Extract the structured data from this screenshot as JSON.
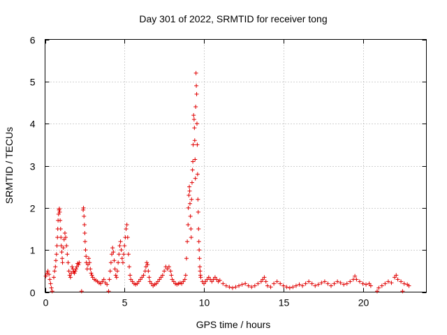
{
  "chart_data": {
    "type": "scatter",
    "title": "Day 301 of 2022, SRMTID for receiver tong",
    "xlabel": "GPS time / hours",
    "ylabel": "SRMTID / TECUs",
    "xlim": [
      0,
      24
    ],
    "ylim": [
      0,
      6
    ],
    "xticks": [
      0,
      5,
      10,
      15,
      20
    ],
    "xtick_labels": [
      "0",
      "5",
      "10",
      "15",
      "20"
    ],
    "yticks": [
      0,
      1,
      2,
      3,
      4,
      5,
      6
    ],
    "ytick_labels": [
      "0",
      "1",
      "2",
      "3",
      "4",
      "5",
      "6"
    ],
    "grid": true,
    "marker": "plus",
    "color": "#e00000",
    "series": [
      {
        "name": "SRMTID",
        "points": [
          [
            0.05,
            0.38
          ],
          [
            0.12,
            0.45
          ],
          [
            0.18,
            0.5
          ],
          [
            0.25,
            0.42
          ],
          [
            0.3,
            0.3
          ],
          [
            0.35,
            0.2
          ],
          [
            0.4,
            0.1
          ],
          [
            0.45,
            0.02
          ],
          [
            0.55,
            0.35
          ],
          [
            0.6,
            0.5
          ],
          [
            0.65,
            0.6
          ],
          [
            0.68,
            0.75
          ],
          [
            0.72,
            0.9
          ],
          [
            0.75,
            1.1
          ],
          [
            0.78,
            1.3
          ],
          [
            0.8,
            1.5
          ],
          [
            0.82,
            1.7
          ],
          [
            0.85,
            1.85
          ],
          [
            0.88,
            1.95
          ],
          [
            0.9,
            1.98
          ],
          [
            0.92,
            1.9
          ],
          [
            0.95,
            1.7
          ],
          [
            0.98,
            1.5
          ],
          [
            1.0,
            1.3
          ],
          [
            1.02,
            1.1
          ],
          [
            1.05,
            0.95
          ],
          [
            1.08,
            0.8
          ],
          [
            1.1,
            0.7
          ],
          [
            1.15,
            1.05
          ],
          [
            1.2,
            1.25
          ],
          [
            1.25,
            1.4
          ],
          [
            1.3,
            1.3
          ],
          [
            1.35,
            1.1
          ],
          [
            1.4,
            0.9
          ],
          [
            1.45,
            0.7
          ],
          [
            1.5,
            0.5
          ],
          [
            1.55,
            0.4
          ],
          [
            1.6,
            0.35
          ],
          [
            1.65,
            0.45
          ],
          [
            1.7,
            0.6
          ],
          [
            1.75,
            0.55
          ],
          [
            1.8,
            0.48
          ],
          [
            1.85,
            0.45
          ],
          [
            1.9,
            0.5
          ],
          [
            1.95,
            0.55
          ],
          [
            2.0,
            0.6
          ],
          [
            2.05,
            0.68
          ],
          [
            2.1,
            0.65
          ],
          [
            2.15,
            0.7
          ],
          [
            2.3,
            0.02
          ],
          [
            2.4,
            1.95
          ],
          [
            2.42,
            2.0
          ],
          [
            2.45,
            1.8
          ],
          [
            2.48,
            1.6
          ],
          [
            2.5,
            1.4
          ],
          [
            2.52,
            1.2
          ],
          [
            2.55,
            1.0
          ],
          [
            2.58,
            0.85
          ],
          [
            2.6,
            0.7
          ],
          [
            2.65,
            0.55
          ],
          [
            2.7,
            0.65
          ],
          [
            2.75,
            0.8
          ],
          [
            2.8,
            0.7
          ],
          [
            2.85,
            0.55
          ],
          [
            2.9,
            0.45
          ],
          [
            2.95,
            0.4
          ],
          [
            3.0,
            0.35
          ],
          [
            3.1,
            0.3
          ],
          [
            3.2,
            0.28
          ],
          [
            3.3,
            0.25
          ],
          [
            3.4,
            0.22
          ],
          [
            3.5,
            0.2
          ],
          [
            3.6,
            0.25
          ],
          [
            3.7,
            0.3
          ],
          [
            3.8,
            0.22
          ],
          [
            3.9,
            0.18
          ],
          [
            4.0,
            0.02
          ],
          [
            4.05,
            0.3
          ],
          [
            4.1,
            0.5
          ],
          [
            4.15,
            0.7
          ],
          [
            4.2,
            0.9
          ],
          [
            4.25,
            1.05
          ],
          [
            4.3,
            0.95
          ],
          [
            4.35,
            0.75
          ],
          [
            4.4,
            0.55
          ],
          [
            4.45,
            0.4
          ],
          [
            4.5,
            0.35
          ],
          [
            4.55,
            0.5
          ],
          [
            4.6,
            0.7
          ],
          [
            4.65,
            0.9
          ],
          [
            4.7,
            1.1
          ],
          [
            4.75,
            1.2
          ],
          [
            4.8,
            1.0
          ],
          [
            4.85,
            0.8
          ],
          [
            4.9,
            0.7
          ],
          [
            4.95,
            0.9
          ],
          [
            5.0,
            1.1
          ],
          [
            5.05,
            1.3
          ],
          [
            5.1,
            1.5
          ],
          [
            5.15,
            1.6
          ],
          [
            5.2,
            1.3
          ],
          [
            5.25,
            0.9
          ],
          [
            5.3,
            0.6
          ],
          [
            5.35,
            0.4
          ],
          [
            5.4,
            0.3
          ],
          [
            5.5,
            0.25
          ],
          [
            5.6,
            0.2
          ],
          [
            5.7,
            0.18
          ],
          [
            5.8,
            0.2
          ],
          [
            5.9,
            0.25
          ],
          [
            6.0,
            0.3
          ],
          [
            6.1,
            0.35
          ],
          [
            6.2,
            0.4
          ],
          [
            6.3,
            0.5
          ],
          [
            6.35,
            0.6
          ],
          [
            6.4,
            0.7
          ],
          [
            6.45,
            0.65
          ],
          [
            6.5,
            0.5
          ],
          [
            6.55,
            0.35
          ],
          [
            6.6,
            0.25
          ],
          [
            6.7,
            0.2
          ],
          [
            6.8,
            0.15
          ],
          [
            6.9,
            0.18
          ],
          [
            7.0,
            0.2
          ],
          [
            7.1,
            0.25
          ],
          [
            7.2,
            0.3
          ],
          [
            7.3,
            0.35
          ],
          [
            7.4,
            0.4
          ],
          [
            7.5,
            0.5
          ],
          [
            7.6,
            0.6
          ],
          [
            7.7,
            0.55
          ],
          [
            7.8,
            0.6
          ],
          [
            7.9,
            0.5
          ],
          [
            7.95,
            0.4
          ],
          [
            8.0,
            0.3
          ],
          [
            8.1,
            0.25
          ],
          [
            8.2,
            0.2
          ],
          [
            8.3,
            0.18
          ],
          [
            8.4,
            0.2
          ],
          [
            8.5,
            0.22
          ],
          [
            8.6,
            0.2
          ],
          [
            8.7,
            0.25
          ],
          [
            8.8,
            0.3
          ],
          [
            8.85,
            0.4
          ],
          [
            8.9,
            0.8
          ],
          [
            8.95,
            1.2
          ],
          [
            9.0,
            1.6
          ],
          [
            9.02,
            2.0
          ],
          [
            9.05,
            2.3
          ],
          [
            9.08,
            2.5
          ],
          [
            9.1,
            2.4
          ],
          [
            9.12,
            2.1
          ],
          [
            9.15,
            1.8
          ],
          [
            9.18,
            1.5
          ],
          [
            9.2,
            1.3
          ],
          [
            9.22,
            2.2
          ],
          [
            9.25,
            2.6
          ],
          [
            9.28,
            2.9
          ],
          [
            9.3,
            3.1
          ],
          [
            9.32,
            3.5
          ],
          [
            9.35,
            4.2
          ],
          [
            9.38,
            4.1
          ],
          [
            9.4,
            3.9
          ],
          [
            9.42,
            3.6
          ],
          [
            9.44,
            3.15
          ],
          [
            9.46,
            2.7
          ],
          [
            9.48,
            4.4
          ],
          [
            9.5,
            5.2
          ],
          [
            9.52,
            4.9
          ],
          [
            9.54,
            4.7
          ],
          [
            9.56,
            4.0
          ],
          [
            9.58,
            3.5
          ],
          [
            9.6,
            2.8
          ],
          [
            9.62,
            2.2
          ],
          [
            9.64,
            1.9
          ],
          [
            9.66,
            1.5
          ],
          [
            9.68,
            1.2
          ],
          [
            9.7,
            1.0
          ],
          [
            9.72,
            0.8
          ],
          [
            9.74,
            0.6
          ],
          [
            9.76,
            0.5
          ],
          [
            9.78,
            0.4
          ],
          [
            9.8,
            0.35
          ],
          [
            9.9,
            0.25
          ],
          [
            10.0,
            0.2
          ],
          [
            10.1,
            0.25
          ],
          [
            10.2,
            0.3
          ],
          [
            10.3,
            0.35
          ],
          [
            10.4,
            0.3
          ],
          [
            10.5,
            0.25
          ],
          [
            10.6,
            0.3
          ],
          [
            10.7,
            0.35
          ],
          [
            10.8,
            0.3
          ],
          [
            10.9,
            0.25
          ],
          [
            11.0,
            0.28
          ],
          [
            11.2,
            0.2
          ],
          [
            11.4,
            0.15
          ],
          [
            11.6,
            0.12
          ],
          [
            11.8,
            0.1
          ],
          [
            12.0,
            0.12
          ],
          [
            12.2,
            0.15
          ],
          [
            12.4,
            0.18
          ],
          [
            12.6,
            0.2
          ],
          [
            12.8,
            0.15
          ],
          [
            13.0,
            0.12
          ],
          [
            13.2,
            0.15
          ],
          [
            13.4,
            0.2
          ],
          [
            13.6,
            0.25
          ],
          [
            13.7,
            0.3
          ],
          [
            13.8,
            0.35
          ],
          [
            13.9,
            0.25
          ],
          [
            14.0,
            0.15
          ],
          [
            14.2,
            0.12
          ],
          [
            14.4,
            0.2
          ],
          [
            14.6,
            0.25
          ],
          [
            14.8,
            0.2
          ],
          [
            15.0,
            0.15
          ],
          [
            15.2,
            0.12
          ],
          [
            15.4,
            0.1
          ],
          [
            15.6,
            0.12
          ],
          [
            15.8,
            0.15
          ],
          [
            16.0,
            0.18
          ],
          [
            16.2,
            0.15
          ],
          [
            16.4,
            0.2
          ],
          [
            16.6,
            0.25
          ],
          [
            16.8,
            0.2
          ],
          [
            17.0,
            0.15
          ],
          [
            17.2,
            0.18
          ],
          [
            17.4,
            0.22
          ],
          [
            17.6,
            0.25
          ],
          [
            17.8,
            0.2
          ],
          [
            18.0,
            0.15
          ],
          [
            18.2,
            0.2
          ],
          [
            18.4,
            0.25
          ],
          [
            18.6,
            0.22
          ],
          [
            18.8,
            0.18
          ],
          [
            19.0,
            0.2
          ],
          [
            19.2,
            0.25
          ],
          [
            19.4,
            0.3
          ],
          [
            19.5,
            0.38
          ],
          [
            19.6,
            0.3
          ],
          [
            19.8,
            0.25
          ],
          [
            20.0,
            0.2
          ],
          [
            20.2,
            0.18
          ],
          [
            20.4,
            0.2
          ],
          [
            20.5,
            0.15
          ],
          [
            20.9,
            0.02
          ],
          [
            21.0,
            0.1
          ],
          [
            21.2,
            0.15
          ],
          [
            21.4,
            0.2
          ],
          [
            21.6,
            0.25
          ],
          [
            21.8,
            0.22
          ],
          [
            22.0,
            0.35
          ],
          [
            22.1,
            0.4
          ],
          [
            22.2,
            0.3
          ],
          [
            22.4,
            0.25
          ],
          [
            22.5,
            0.02
          ],
          [
            22.6,
            0.2
          ],
          [
            22.8,
            0.18
          ],
          [
            22.9,
            0.15
          ]
        ]
      }
    ]
  }
}
